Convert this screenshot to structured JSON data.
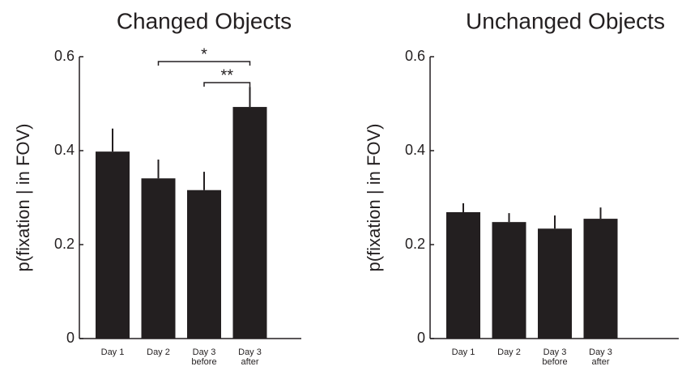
{
  "chart_data": [
    {
      "type": "bar",
      "title": "Changed Objects",
      "y_label": "p(fixation | in FOV)",
      "categories": [
        "Day 1",
        "Day 2",
        "Day 3 before",
        "Day 3 after"
      ],
      "values": [
        0.398,
        0.341,
        0.316,
        0.493
      ],
      "errors": [
        0.049,
        0.04,
        0.039,
        0.043
      ],
      "color": "#231f20",
      "ylim": [
        0,
        0.6
      ],
      "yticks": [
        0,
        0.2,
        0.4,
        0.6
      ],
      "annotations": [
        {
          "text": "*",
          "from": 1,
          "to": 3
        },
        {
          "text": "**",
          "from": 2,
          "to": 3
        }
      ]
    },
    {
      "type": "bar",
      "title": "Unchanged Objects",
      "y_label": "p(fixation | in FOV)",
      "categories": [
        "Day 1",
        "Day 2",
        "Day 3 before",
        "Day 3 after"
      ],
      "values": [
        0.269,
        0.248,
        0.234,
        0.255
      ],
      "errors": [
        0.019,
        0.019,
        0.028,
        0.024
      ],
      "color": "#231f20",
      "ylim": [
        0,
        0.6
      ],
      "yticks": [
        0,
        0.2,
        0.4,
        0.6
      ]
    }
  ]
}
